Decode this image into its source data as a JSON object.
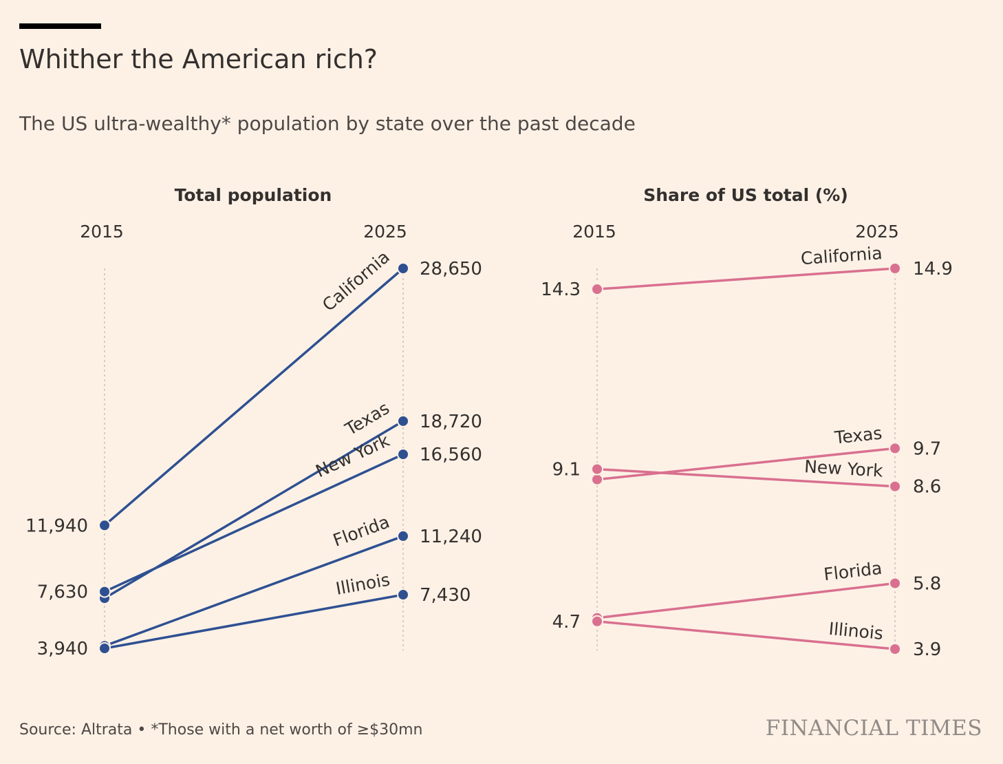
{
  "title": "Whither the American rich?",
  "subtitle": "The US ultra-wealthy* population by state over the past decade",
  "source": "Source: Altrata • *Those with a net worth of ≥$30mn",
  "brand": "FINANCIAL TIMES",
  "colors": {
    "background": "#fdf1e6",
    "population_line": "#2e5091",
    "share_line": "#d9708f"
  },
  "chart_data": [
    {
      "type": "line",
      "title": "Total population",
      "x": [
        "2015",
        "2025"
      ],
      "y_labels_2015": [
        "11,940",
        "7,630",
        "3,940"
      ],
      "series": [
        {
          "name": "California",
          "values": [
            11940,
            28650
          ],
          "end_label": "28,650"
        },
        {
          "name": "Texas",
          "values": [
            7200,
            18720
          ],
          "end_label": "18,720"
        },
        {
          "name": "New York",
          "values": [
            7630,
            16560
          ],
          "end_label": "16,560"
        },
        {
          "name": "Florida",
          "values": [
            4100,
            11240
          ],
          "end_label": "11,240"
        },
        {
          "name": "Illinois",
          "values": [
            3940,
            7430
          ],
          "end_label": "7,430"
        }
      ]
    },
    {
      "type": "line",
      "title": "Share of US total (%)",
      "x": [
        "2015",
        "2025"
      ],
      "y_labels_2015": [
        "14.3",
        "9.1",
        "4.7"
      ],
      "series": [
        {
          "name": "California",
          "values": [
            14.3,
            14.9
          ],
          "end_label": "14.9"
        },
        {
          "name": "Texas",
          "values": [
            8.8,
            9.7
          ],
          "end_label": "9.7"
        },
        {
          "name": "New York",
          "values": [
            9.1,
            8.6
          ],
          "end_label": "8.6"
        },
        {
          "name": "Florida",
          "values": [
            4.8,
            5.8
          ],
          "end_label": "5.8"
        },
        {
          "name": "Illinois",
          "values": [
            4.7,
            3.9
          ],
          "end_label": "3.9"
        }
      ]
    }
  ]
}
